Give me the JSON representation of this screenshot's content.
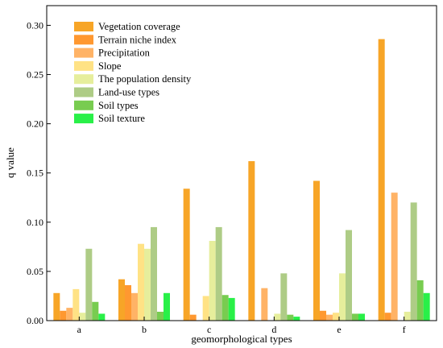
{
  "chart_data": {
    "type": "bar",
    "xlabel": "geomorphological types",
    "ylabel": "q value",
    "ylim": [
      0,
      0.32
    ],
    "yticks": [
      "0.00",
      "0.05",
      "0.10",
      "0.15",
      "0.20",
      "0.25",
      "0.30"
    ],
    "legend_position": "top-left",
    "categories": [
      "a",
      "b",
      "c",
      "d",
      "e",
      "f"
    ],
    "series": [
      {
        "name": "Vegetation coverage",
        "color": "#F7A527",
        "values": [
          0.028,
          0.042,
          0.134,
          0.162,
          0.142,
          0.286
        ]
      },
      {
        "name": "Terrain niche index",
        "color": "#FF9830",
        "values": [
          0.01,
          0.036,
          0.006,
          0.0,
          0.01,
          0.008
        ]
      },
      {
        "name": "Precipitation",
        "color": "#FFB366",
        "values": [
          0.013,
          0.028,
          0.0,
          0.033,
          0.006,
          0.13
        ]
      },
      {
        "name": "Slope",
        "color": "#FFE285",
        "values": [
          0.032,
          0.078,
          0.025,
          0.0,
          0.008,
          0.0
        ]
      },
      {
        "name": "The population density",
        "color": "#E6EE9C",
        "values": [
          0.008,
          0.073,
          0.081,
          0.007,
          0.048,
          0.009
        ]
      },
      {
        "name": "Land-use types",
        "color": "#AECC86",
        "values": [
          0.073,
          0.095,
          0.095,
          0.048,
          0.092,
          0.12
        ]
      },
      {
        "name": "Soil types",
        "color": "#78CC50",
        "values": [
          0.019,
          0.009,
          0.026,
          0.006,
          0.007,
          0.041
        ]
      },
      {
        "name": "Soil texture",
        "color": "#29F048",
        "values": [
          0.007,
          0.028,
          0.023,
          0.004,
          0.007,
          0.028
        ]
      }
    ]
  }
}
